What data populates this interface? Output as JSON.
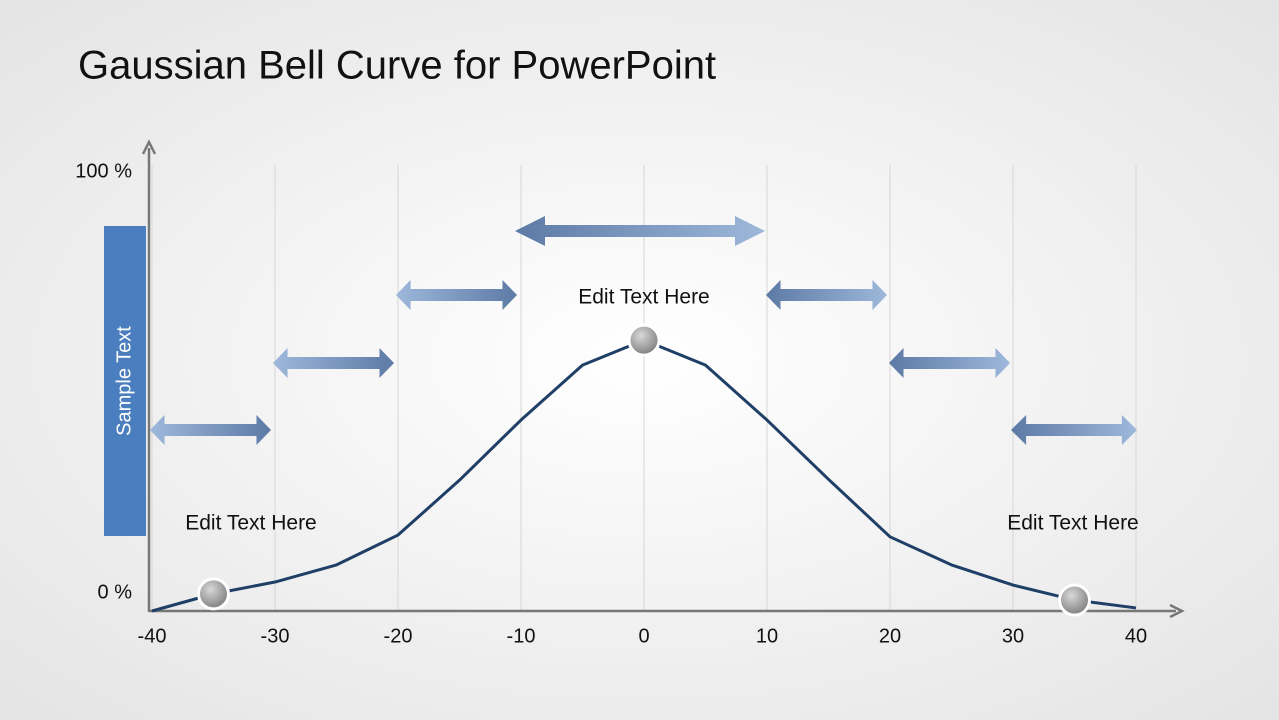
{
  "chart_data": {
    "type": "line",
    "title": "Gaussian Bell Curve for PowerPoint",
    "side_label": "Sample Text",
    "annotations": [
      "Edit Text Here",
      "Edit Text Here",
      "Edit Text Here"
    ],
    "x": [
      -40,
      -35,
      -30,
      -25,
      -20,
      -15,
      -10,
      -5,
      0,
      5,
      10,
      15,
      20,
      25,
      30,
      35,
      40
    ],
    "series": [
      {
        "color": "#1f3f66",
        "values": [
          0,
          3.9,
          6.6,
          10.5,
          17.3,
          29.8,
          43.5,
          56,
          61.7,
          56,
          43.5,
          30,
          16.9,
          10.5,
          5.9,
          2.5,
          0.7
        ]
      }
    ],
    "xlim": [
      -40,
      40
    ],
    "xticks": [
      -40,
      -30,
      -20,
      -10,
      0,
      10,
      20,
      30,
      40
    ],
    "ylim": [
      0,
      100
    ],
    "yticks": [
      {
        "value": 0,
        "label": "0 %"
      },
      {
        "value": 100,
        "label": "100 %"
      }
    ],
    "grid": true
  }
}
